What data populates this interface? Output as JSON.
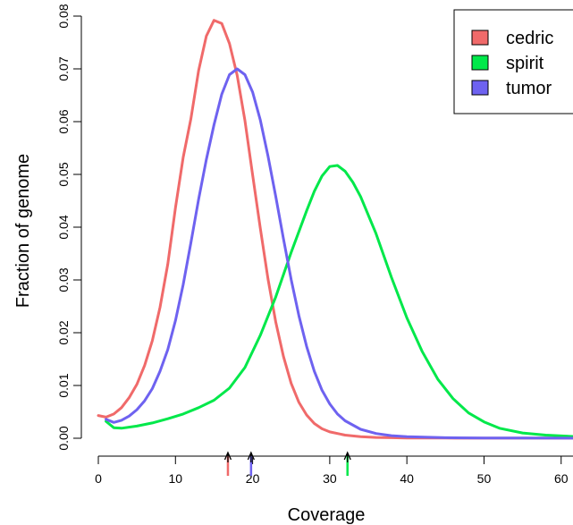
{
  "chart_data": {
    "type": "line",
    "title": "",
    "xlabel": "Coverage",
    "ylabel": "Fraction of genome",
    "xlim": [
      0,
      62
    ],
    "ylim": [
      0,
      0.08
    ],
    "x_ticks": [
      "0",
      "10",
      "20",
      "30",
      "40",
      "50",
      "60"
    ],
    "y_ticks": [
      "0.00",
      "0.01",
      "0.02",
      "0.03",
      "0.04",
      "0.05",
      "0.06",
      "0.07",
      "0.08"
    ],
    "legend_position": "top-right",
    "series": [
      {
        "name": "cedric",
        "color": "#f06a6a",
        "x": [
          0,
          1,
          2,
          3,
          4,
          5,
          6,
          7,
          8,
          9,
          10,
          11,
          12,
          13,
          14,
          15,
          16,
          17,
          18,
          19,
          20,
          21,
          22,
          23,
          24,
          25,
          26,
          27,
          28,
          29,
          30,
          32,
          34,
          36,
          38,
          40,
          45,
          50,
          55,
          62
        ],
        "y": [
          0.0043,
          0.004,
          0.0046,
          0.0058,
          0.0077,
          0.0102,
          0.0138,
          0.0185,
          0.0248,
          0.033,
          0.0437,
          0.0532,
          0.0605,
          0.0697,
          0.0762,
          0.0792,
          0.0786,
          0.0748,
          0.0688,
          0.0602,
          0.0499,
          0.0398,
          0.0302,
          0.022,
          0.0155,
          0.0104,
          0.0068,
          0.0044,
          0.0028,
          0.0018,
          0.0012,
          0.0006,
          0.0003,
          0.00015,
          0.0001,
          5e-05,
          3e-05,
          2e-05,
          1e-05,
          1e-05
        ]
      },
      {
        "name": "spirit",
        "color": "#00e84a",
        "x": [
          1,
          2,
          3,
          5,
          7,
          9,
          11,
          13,
          15,
          17,
          19,
          21,
          23,
          25,
          27,
          28,
          29,
          30,
          31,
          32,
          33,
          34,
          36,
          38,
          40,
          42,
          44,
          46,
          48,
          50,
          52,
          55,
          58,
          62
        ],
        "y": [
          0.0032,
          0.002,
          0.0019,
          0.0023,
          0.0029,
          0.0037,
          0.0046,
          0.0058,
          0.0072,
          0.0095,
          0.0134,
          0.0195,
          0.0268,
          0.0352,
          0.0431,
          0.0468,
          0.0497,
          0.0515,
          0.0517,
          0.0506,
          0.0485,
          0.0458,
          0.0388,
          0.0305,
          0.0228,
          0.0164,
          0.0112,
          0.0075,
          0.0048,
          0.0031,
          0.0019,
          0.001,
          0.0006,
          0.0003
        ]
      },
      {
        "name": "tumor",
        "color": "#6e62f0",
        "x": [
          1,
          2,
          3,
          4,
          5,
          6,
          7,
          8,
          9,
          10,
          11,
          12,
          13,
          14,
          15,
          16,
          17,
          18,
          19,
          20,
          21,
          22,
          23,
          24,
          25,
          26,
          27,
          28,
          29,
          30,
          31,
          32,
          34,
          36,
          38,
          40,
          45,
          50,
          55,
          62
        ],
        "y": [
          0.0036,
          0.003,
          0.0034,
          0.0042,
          0.0054,
          0.0071,
          0.0094,
          0.0127,
          0.0168,
          0.0223,
          0.0291,
          0.037,
          0.0453,
          0.0528,
          0.0594,
          0.0652,
          0.0689,
          0.07,
          0.0689,
          0.0656,
          0.0603,
          0.0535,
          0.0458,
          0.0378,
          0.0301,
          0.0232,
          0.0174,
          0.0127,
          0.0091,
          0.0065,
          0.0046,
          0.0033,
          0.0017,
          0.0009,
          0.0005,
          0.0003,
          0.0001,
          5e-05,
          3e-05,
          2e-05
        ]
      }
    ],
    "markers": [
      {
        "series": "cedric",
        "x": 16.8,
        "color": "#f06a6a"
      },
      {
        "series": "tumor",
        "x": 19.8,
        "color": "#6e62f0"
      },
      {
        "series": "spirit",
        "x": 32.3,
        "color": "#00e84a"
      }
    ]
  }
}
